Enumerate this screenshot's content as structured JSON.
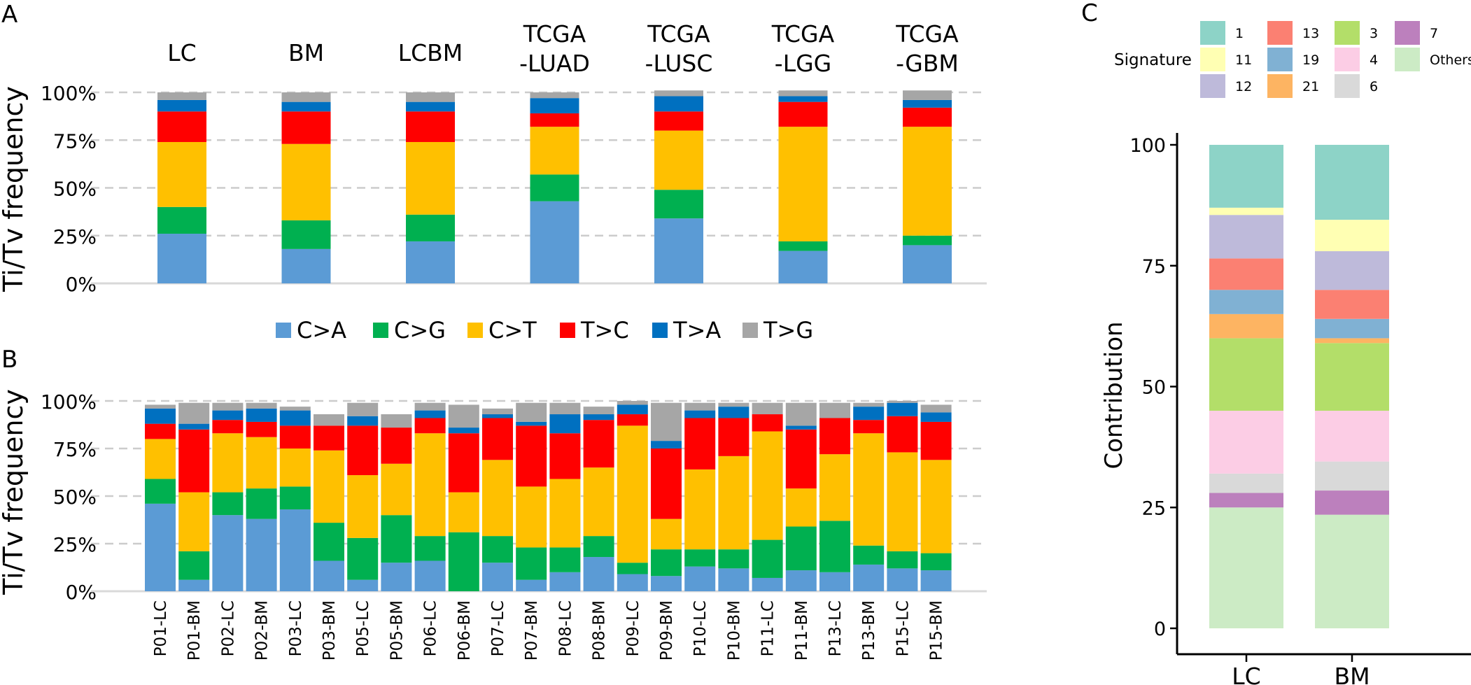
{
  "panels": {
    "a": "A",
    "b": "B",
    "c": "C"
  },
  "colors": {
    "C>A": "#5b9bd5",
    "C>G": "#00b050",
    "C>T": "#ffc000",
    "T>C": "#ff0000",
    "T>A": "#0070c0",
    "T>G": "#a6a6a6"
  },
  "signature_colors": {
    "1": "#8dd3c7",
    "11": "#ffffb3",
    "12": "#bebada",
    "13": "#fb8072",
    "19": "#80b1d3",
    "21": "#fdb462",
    "3": "#b3de69",
    "4": "#fccde5",
    "6": "#d9d9d9",
    "7": "#bc80bd",
    "Others": "#ccebc5"
  },
  "chart_data": [
    {
      "id": "A",
      "type": "bar",
      "stacked": true,
      "percent": true,
      "ylabel": "Ti/Tv frequency",
      "ylim": [
        0,
        100
      ],
      "yticks": [
        "0%",
        "25%",
        "50%",
        "75%",
        "100%"
      ],
      "grid": "dashed horizontal",
      "categories": [
        [
          "LC"
        ],
        [
          "BM"
        ],
        [
          "LCBM"
        ],
        [
          "TCGA",
          "-LUAD"
        ],
        [
          "TCGA",
          "-LUSC"
        ],
        [
          "TCGA",
          "-LGG"
        ],
        [
          "TCGA",
          "-GBM"
        ]
      ],
      "legend_position": "below",
      "series": [
        {
          "name": "C>A",
          "values": [
            26,
            18,
            22,
            43,
            34,
            17,
            20
          ]
        },
        {
          "name": "C>G",
          "values": [
            14,
            15,
            14,
            14,
            15,
            5,
            5
          ]
        },
        {
          "name": "C>T",
          "values": [
            34,
            40,
            38,
            25,
            31,
            60,
            57
          ]
        },
        {
          "name": "T>C",
          "values": [
            16,
            17,
            16,
            7,
            10,
            13,
            10
          ]
        },
        {
          "name": "T>A",
          "values": [
            6,
            5,
            5,
            8,
            8,
            3,
            4
          ]
        },
        {
          "name": "T>G",
          "values": [
            4,
            5,
            5,
            3,
            3,
            3,
            5
          ]
        }
      ]
    },
    {
      "id": "B",
      "type": "bar",
      "stacked": true,
      "percent": true,
      "ylabel": "Ti/Tv frequency",
      "ylim": [
        0,
        100
      ],
      "yticks": [
        "0%",
        "25%",
        "50%",
        "75%",
        "100%"
      ],
      "grid": "dashed horizontal",
      "categories": [
        "P01-LC",
        "P01-BM",
        "P02-LC",
        "P02-BM",
        "P03-LC",
        "P03-BM",
        "P05-LC",
        "P05-BM",
        "P06-LC",
        "P06-BM",
        "P07-LC",
        "P07-BM",
        "P08-LC",
        "P08-BM",
        "P09-LC",
        "P09-BM",
        "P10-LC",
        "P10-BM",
        "P11-LC",
        "P11-BM",
        "P13-LC",
        "P13-BM",
        "P15-LC",
        "P15-BM"
      ],
      "series": [
        {
          "name": "C>A",
          "values": [
            46,
            6,
            40,
            38,
            43,
            16,
            6,
            15,
            16,
            0,
            15,
            6,
            10,
            18,
            9,
            8,
            13,
            12,
            7,
            11,
            10,
            14,
            12,
            11
          ]
        },
        {
          "name": "C>G",
          "values": [
            13,
            15,
            12,
            16,
            12,
            20,
            22,
            25,
            13,
            31,
            14,
            17,
            13,
            11,
            6,
            14,
            9,
            10,
            20,
            23,
            27,
            10,
            9,
            9
          ]
        },
        {
          "name": "C>T",
          "values": [
            21,
            31,
            31,
            27,
            20,
            38,
            33,
            27,
            54,
            21,
            40,
            32,
            36,
            36,
            72,
            16,
            42,
            49,
            57,
            20,
            35,
            59,
            52,
            49
          ]
        },
        {
          "name": "T>C",
          "values": [
            8,
            33,
            7,
            8,
            12,
            13,
            26,
            19,
            8,
            31,
            22,
            32,
            24,
            25,
            6,
            37,
            27,
            20,
            9,
            31,
            19,
            7,
            19,
            20
          ]
        },
        {
          "name": "T>A",
          "values": [
            8,
            3,
            5,
            7,
            8,
            0,
            5,
            0,
            4,
            3,
            2,
            2,
            10,
            3,
            5,
            4,
            4,
            6,
            0,
            2,
            0,
            7,
            7,
            5
          ]
        },
        {
          "name": "T>G",
          "values": [
            2,
            11,
            4,
            3,
            2,
            6,
            7,
            7,
            4,
            12,
            3,
            10,
            6,
            4,
            2,
            20,
            4,
            2,
            6,
            12,
            8,
            2,
            1,
            4
          ]
        }
      ]
    },
    {
      "id": "C",
      "type": "bar",
      "stacked": true,
      "ylabel": "Contribution",
      "ylim": [
        0,
        100
      ],
      "yticks": [
        "0",
        "25",
        "50",
        "75",
        "100"
      ],
      "categories": [
        "LC",
        "BM"
      ],
      "legend_title": "Signature",
      "legend_order": [
        "1",
        "11",
        "12",
        "13",
        "19",
        "21",
        "3",
        "4",
        "6",
        "7",
        "Others"
      ],
      "series": [
        {
          "name": "Others",
          "values": [
            25,
            23.5
          ]
        },
        {
          "name": "7",
          "values": [
            3,
            5
          ]
        },
        {
          "name": "6",
          "values": [
            4,
            6
          ]
        },
        {
          "name": "4",
          "values": [
            13,
            10.5
          ]
        },
        {
          "name": "3",
          "values": [
            15,
            14
          ]
        },
        {
          "name": "21",
          "values": [
            5,
            1
          ]
        },
        {
          "name": "19",
          "values": [
            5,
            4
          ]
        },
        {
          "name": "13",
          "values": [
            6.5,
            6
          ]
        },
        {
          "name": "12",
          "values": [
            9,
            8
          ]
        },
        {
          "name": "11",
          "values": [
            1.5,
            6.5
          ]
        },
        {
          "name": "1",
          "values": [
            13,
            15.5
          ]
        }
      ]
    }
  ]
}
